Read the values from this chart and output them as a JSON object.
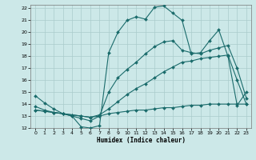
{
  "xlabel": "Humidex (Indice chaleur)",
  "xlim": [
    -0.5,
    23.5
  ],
  "ylim": [
    12,
    22.3
  ],
  "xticks": [
    0,
    1,
    2,
    3,
    4,
    5,
    6,
    7,
    8,
    9,
    10,
    11,
    12,
    13,
    14,
    15,
    16,
    17,
    18,
    19,
    20,
    21,
    22,
    23
  ],
  "yticks": [
    12,
    13,
    14,
    15,
    16,
    17,
    18,
    19,
    20,
    21,
    22
  ],
  "background_color": "#cce8e8",
  "grid_color": "#aacccc",
  "line_color": "#1a6b6b",
  "curve_max": {
    "x": [
      0,
      1,
      2,
      3,
      4,
      5,
      6,
      7,
      8,
      9,
      10,
      11,
      12,
      13,
      14,
      15,
      16,
      17,
      18,
      19,
      20,
      21,
      22,
      23
    ],
    "y": [
      14.7,
      14.1,
      13.6,
      13.2,
      13.0,
      12.1,
      12.0,
      12.2,
      18.3,
      20.0,
      21.0,
      21.3,
      21.1,
      22.1,
      22.2,
      21.6,
      21.0,
      18.2,
      18.3,
      19.3,
      20.2,
      18.0,
      13.9,
      15.0
    ]
  },
  "curve_upper_mean": {
    "x": [
      0,
      1,
      2,
      3,
      4,
      5,
      6,
      7,
      8,
      9,
      10,
      11,
      12,
      13,
      14,
      15,
      16,
      17,
      18,
      19,
      20,
      21,
      22,
      23
    ],
    "y": [
      13.8,
      13.5,
      13.3,
      13.2,
      13.0,
      12.8,
      12.6,
      13.0,
      15.0,
      16.2,
      16.9,
      17.5,
      18.2,
      18.8,
      19.2,
      19.3,
      18.5,
      18.3,
      18.2,
      18.5,
      18.7,
      18.9,
      17.0,
      14.5
    ]
  },
  "curve_lower_mean": {
    "x": [
      0,
      1,
      2,
      3,
      4,
      5,
      6,
      7,
      8,
      9,
      10,
      11,
      12,
      13,
      14,
      15,
      16,
      17,
      18,
      19,
      20,
      21,
      22,
      23
    ],
    "y": [
      13.5,
      13.4,
      13.3,
      13.2,
      13.1,
      13.0,
      12.9,
      13.1,
      13.6,
      14.2,
      14.8,
      15.3,
      15.7,
      16.2,
      16.7,
      17.1,
      17.5,
      17.6,
      17.8,
      17.9,
      18.0,
      18.1,
      16.0,
      14.0
    ]
  },
  "curve_min": {
    "x": [
      0,
      1,
      2,
      3,
      4,
      5,
      6,
      7,
      8,
      9,
      10,
      11,
      12,
      13,
      14,
      15,
      16,
      17,
      18,
      19,
      20,
      21,
      22,
      23
    ],
    "y": [
      13.5,
      13.4,
      13.3,
      13.2,
      13.1,
      13.0,
      12.9,
      13.0,
      13.2,
      13.3,
      13.4,
      13.5,
      13.5,
      13.6,
      13.7,
      13.7,
      13.8,
      13.9,
      13.9,
      14.0,
      14.0,
      14.0,
      14.0,
      14.0
    ]
  }
}
